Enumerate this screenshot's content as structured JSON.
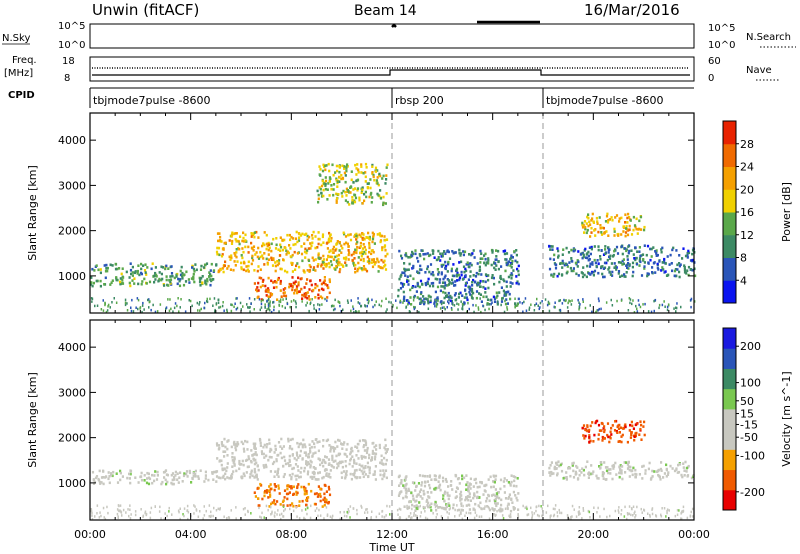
{
  "header": {
    "title": "Unwin (fitACF)",
    "beam": "Beam 14",
    "date": "16/Mar/2016"
  },
  "top_panels": {
    "nsky_label": "N.Sky",
    "nsky_ticks": [
      "10^5",
      "10^0"
    ],
    "nsearch_label": "N.Search",
    "nsearch_ticks": [
      "10^5",
      "10^0"
    ],
    "freq_label_1": "Freq.",
    "freq_label_2": "[MHz]",
    "freq_ticks": [
      "18",
      "8"
    ],
    "nave_label": "Nave",
    "nave_ticks": [
      "60",
      "0"
    ],
    "cpid_label": "CPID",
    "cpid_segments": [
      {
        "start": 0,
        "end": 12,
        "name": "tbjmode7pulse -8600"
      },
      {
        "start": 12,
        "end": 18,
        "name": "rbsp 200"
      },
      {
        "start": 18,
        "end": 24,
        "name": "tbjmode7pulse -8600"
      }
    ]
  },
  "chart_data": [
    {
      "type": "heatmap",
      "title": "",
      "xlabel": "Time UT",
      "ylabel": "Slant Range [km]",
      "xlim": [
        0,
        24
      ],
      "ylim": [
        180,
        4600
      ],
      "xticks": [
        "00:00",
        "04:00",
        "08:00",
        "12:00",
        "16:00",
        "20:00",
        "00:00"
      ],
      "yticks": [
        1000,
        2000,
        3000,
        4000
      ],
      "colorbar": {
        "label": "Power [dB]",
        "range": [
          0,
          32
        ],
        "ticks": [
          4,
          8,
          12,
          16,
          20,
          24,
          28
        ],
        "colors": [
          "#0a14f0",
          "#2a55b8",
          "#3c8a64",
          "#5aa84a",
          "#f0d000",
          "#f5a000",
          "#f06a00",
          "#e82200"
        ]
      },
      "regions": [
        {
          "t0": 0.0,
          "t1": 5.0,
          "r0": 800,
          "r1": 1300,
          "value": 12
        },
        {
          "t0": 5.0,
          "t1": 11.8,
          "r0": 1100,
          "r1": 2000,
          "value": 20
        },
        {
          "t0": 6.5,
          "t1": 9.5,
          "r0": 500,
          "r1": 1000,
          "value": 26
        },
        {
          "t0": 9.0,
          "t1": 11.8,
          "r0": 2600,
          "r1": 3500,
          "value": 16
        },
        {
          "t0": 12.2,
          "t1": 17.0,
          "r0": 400,
          "r1": 1600,
          "value": 8
        },
        {
          "t0": 18.2,
          "t1": 24.0,
          "r0": 1000,
          "r1": 1700,
          "value": 8
        },
        {
          "t0": 19.5,
          "t1": 22.0,
          "r0": 1900,
          "r1": 2400,
          "value": 20
        }
      ]
    },
    {
      "type": "heatmap",
      "title": "",
      "xlabel": "Time UT",
      "ylabel": "Slant Range [km]",
      "xlim": [
        0,
        24
      ],
      "ylim": [
        180,
        4600
      ],
      "xticks": [
        "00:00",
        "04:00",
        "08:00",
        "12:00",
        "16:00",
        "20:00",
        "00:00"
      ],
      "yticks": [
        1000,
        2000,
        3000,
        4000
      ],
      "colorbar": {
        "label": "Velocity [m s^-1]",
        "range": [
          -250,
          250
        ],
        "ticks": [
          200,
          100,
          50,
          15,
          -15,
          -50,
          -100,
          -200
        ],
        "colors": [
          "#e80000",
          "#f05a00",
          "#f5a000",
          "#c8c8c0",
          "#c8c8c0",
          "#7ac850",
          "#3c8a64",
          "#2a55b8",
          "#1a1ae0"
        ]
      },
      "regions": [
        {
          "t0": 0.0,
          "t1": 5.0,
          "r0": 1000,
          "r1": 1300,
          "value": 0
        },
        {
          "t0": 5.0,
          "t1": 11.8,
          "r0": 1100,
          "r1": 2000,
          "value": -30
        },
        {
          "t0": 6.5,
          "t1": 9.5,
          "r0": 500,
          "r1": 1000,
          "value": -150
        },
        {
          "t0": 12.2,
          "t1": 17.0,
          "r0": 400,
          "r1": 1200,
          "value": 0
        },
        {
          "t0": 19.5,
          "t1": 22.0,
          "r0": 1900,
          "r1": 2400,
          "value": -180
        },
        {
          "t0": 18.2,
          "t1": 24.0,
          "r0": 1100,
          "r1": 1500,
          "value": 0
        }
      ]
    }
  ]
}
